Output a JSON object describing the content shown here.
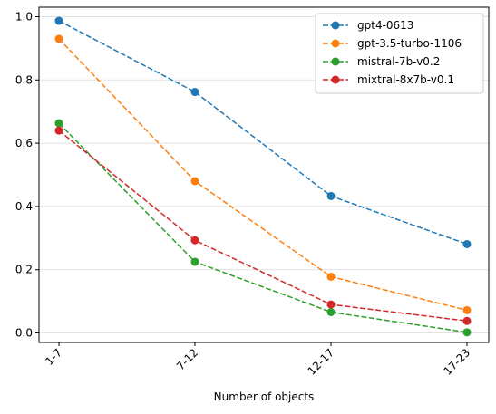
{
  "chart_data": {
    "type": "line",
    "title": "",
    "xlabel": "Number of objects",
    "ylabel": "",
    "categories": [
      "1-7",
      "7-12",
      "12-17",
      "17-23"
    ],
    "ylim": [
      -0.03,
      1.03
    ],
    "yticks": [
      0.0,
      0.2,
      0.4,
      0.6,
      0.8,
      1.0
    ],
    "ytick_labels": [
      "0.0",
      "0.2",
      "0.4",
      "0.6",
      "0.8",
      "1.0"
    ],
    "grid": "horizontal",
    "legend_position": "top-right",
    "line_style": "dashed",
    "marker": "circle",
    "series": [
      {
        "name": "gpt4-0613",
        "color": "#1f77b4",
        "values": [
          0.987,
          0.762,
          0.433,
          0.281
        ]
      },
      {
        "name": "gpt-3.5-turbo-1106",
        "color": "#ff7f0e",
        "values": [
          0.93,
          0.48,
          0.178,
          0.072
        ]
      },
      {
        "name": "mistral-7b-v0.2",
        "color": "#2ca02c",
        "values": [
          0.663,
          0.225,
          0.066,
          0.002
        ]
      },
      {
        "name": "mixtral-8x7b-v0.1",
        "color": "#d62728",
        "values": [
          0.64,
          0.293,
          0.09,
          0.038
        ]
      }
    ]
  }
}
